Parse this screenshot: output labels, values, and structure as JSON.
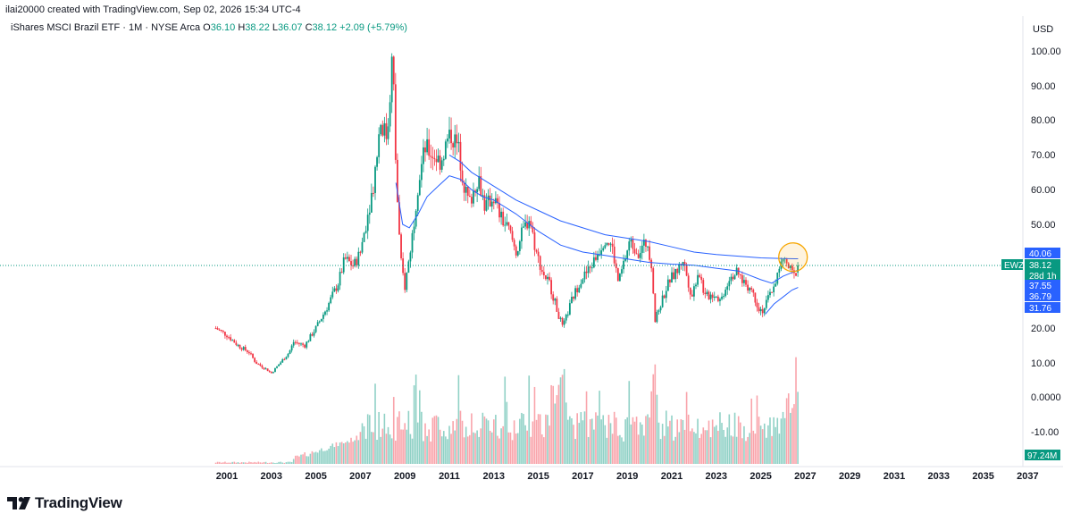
{
  "header": {
    "credit": "ilai20000 created with TradingView.com, Sep 02, 2026 15:34 UTC-4"
  },
  "legend": {
    "symbol": "iShares MSCI Brazil ETF · 1M · NYSE Arca",
    "o_label": "O",
    "o_value": "36.10",
    "h_label": "H",
    "h_value": "38.22",
    "l_label": "L",
    "l_value": "36.07",
    "c_label": "C",
    "c_value": "38.12",
    "change": "+2.09 (+5.79%)"
  },
  "currency": "USD",
  "brand": {
    "name": "TradingView"
  },
  "colors": {
    "up": "#089981",
    "down": "#f23645",
    "ma": "#2962ff",
    "price_line": "#089981",
    "highlight": "#f7a600"
  },
  "chart_data": {
    "type": "candlestick",
    "title": "",
    "symbol_tag": "EWZ",
    "y_ticks": [
      "100.00",
      "90.00",
      "80.00",
      "70.00",
      "60.00",
      "50.00",
      "20.00",
      "10.00",
      "0.0000",
      "-10.00"
    ],
    "x_ticks": [
      "2001",
      "2003",
      "2005",
      "2007",
      "2009",
      "2011",
      "2013",
      "2015",
      "2017",
      "2019",
      "2021",
      "2023",
      "2025",
      "2027",
      "2029",
      "2031",
      "2033",
      "2035",
      "2037"
    ],
    "price_labels": [
      {
        "value": "40.06",
        "color": "#2962ff"
      },
      {
        "value": "38.12",
        "color": "#089981"
      },
      {
        "value": "28d 1h",
        "color": "#089981"
      },
      {
        "value": "37.55",
        "color": "#2962ff"
      },
      {
        "value": "36.79",
        "color": "#2962ff"
      },
      {
        "value": "31.76",
        "color": "#2962ff"
      }
    ],
    "volume_label": "97.24M",
    "close_path": [
      [
        2000.5,
        20
      ],
      [
        2001.0,
        18
      ],
      [
        2001.5,
        15
      ],
      [
        2002.0,
        13
      ],
      [
        2002.3,
        10
      ],
      [
        2002.8,
        8
      ],
      [
        2003.0,
        7
      ],
      [
        2003.4,
        10
      ],
      [
        2003.8,
        13
      ],
      [
        2004.0,
        16
      ],
      [
        2004.5,
        15
      ],
      [
        2005.0,
        20
      ],
      [
        2005.5,
        26
      ],
      [
        2006.0,
        33
      ],
      [
        2006.3,
        40
      ],
      [
        2006.7,
        38
      ],
      [
        2007.0,
        42
      ],
      [
        2007.3,
        52
      ],
      [
        2007.6,
        62
      ],
      [
        2007.9,
        80
      ],
      [
        2008.2,
        75
      ],
      [
        2008.45,
        100
      ],
      [
        2008.6,
        65
      ],
      [
        2008.8,
        40
      ],
      [
        2009.0,
        32
      ],
      [
        2009.3,
        45
      ],
      [
        2009.6,
        62
      ],
      [
        2009.9,
        72
      ],
      [
        2010.3,
        70
      ],
      [
        2010.6,
        68
      ],
      [
        2010.9,
        74
      ],
      [
        2011.1,
        76
      ],
      [
        2011.4,
        72
      ],
      [
        2011.7,
        60
      ],
      [
        2011.9,
        56
      ],
      [
        2012.3,
        64
      ],
      [
        2012.6,
        55
      ],
      [
        2013.0,
        58
      ],
      [
        2013.3,
        52
      ],
      [
        2013.7,
        48
      ],
      [
        2014.0,
        42
      ],
      [
        2014.3,
        48
      ],
      [
        2014.6,
        52
      ],
      [
        2014.9,
        42
      ],
      [
        2015.2,
        36
      ],
      [
        2015.5,
        33
      ],
      [
        2015.9,
        24
      ],
      [
        2016.1,
        20
      ],
      [
        2016.5,
        28
      ],
      [
        2016.9,
        34
      ],
      [
        2017.3,
        37
      ],
      [
        2017.7,
        42
      ],
      [
        2018.0,
        46
      ],
      [
        2018.3,
        44
      ],
      [
        2018.6,
        33
      ],
      [
        2018.9,
        40
      ],
      [
        2019.1,
        45
      ],
      [
        2019.5,
        42
      ],
      [
        2019.9,
        45
      ],
      [
        2020.1,
        38
      ],
      [
        2020.25,
        22
      ],
      [
        2020.5,
        27
      ],
      [
        2020.9,
        34
      ],
      [
        2021.2,
        36
      ],
      [
        2021.5,
        40
      ],
      [
        2021.9,
        29
      ],
      [
        2022.2,
        37
      ],
      [
        2022.5,
        29
      ],
      [
        2022.9,
        30
      ],
      [
        2023.2,
        28
      ],
      [
        2023.6,
        35
      ],
      [
        2023.9,
        36
      ],
      [
        2024.3,
        33
      ],
      [
        2024.6,
        31
      ],
      [
        2024.9,
        26
      ],
      [
        2025.1,
        25
      ],
      [
        2025.5,
        31
      ],
      [
        2025.8,
        36
      ],
      [
        2026.0,
        40
      ],
      [
        2026.3,
        37
      ],
      [
        2026.5,
        35
      ],
      [
        2026.68,
        38.12
      ]
    ],
    "ma_fast": [
      [
        2008.6,
        62
      ],
      [
        2008.9,
        50
      ],
      [
        2009.2,
        49
      ],
      [
        2009.6,
        53
      ],
      [
        2010.0,
        58
      ],
      [
        2010.5,
        61
      ],
      [
        2011.0,
        64
      ],
      [
        2011.5,
        63
      ],
      [
        2012.0,
        60
      ],
      [
        2012.5,
        58
      ],
      [
        2013.0,
        57
      ],
      [
        2014.0,
        53
      ],
      [
        2015.0,
        48
      ],
      [
        2016.0,
        44
      ],
      [
        2017.0,
        42
      ],
      [
        2018.0,
        41
      ],
      [
        2019.0,
        40
      ],
      [
        2020.0,
        39
      ],
      [
        2021.0,
        38.5
      ],
      [
        2022.0,
        38.2
      ],
      [
        2023.0,
        37.3
      ],
      [
        2024.0,
        36.5
      ],
      [
        2025.0,
        34
      ],
      [
        2025.5,
        33
      ],
      [
        2026.0,
        35
      ],
      [
        2026.68,
        36.79
      ]
    ],
    "ma_slow": [
      [
        2011.0,
        70
      ],
      [
        2011.5,
        68
      ],
      [
        2012.0,
        65
      ],
      [
        2013.0,
        61
      ],
      [
        2014.0,
        57
      ],
      [
        2015.0,
        54
      ],
      [
        2016.0,
        51
      ],
      [
        2017.0,
        49
      ],
      [
        2018.0,
        47
      ],
      [
        2019.0,
        46
      ],
      [
        2020.0,
        45
      ],
      [
        2021.0,
        43.5
      ],
      [
        2022.0,
        42
      ],
      [
        2023.0,
        41.3
      ],
      [
        2024.0,
        40.8
      ],
      [
        2025.0,
        40.3
      ],
      [
        2026.0,
        40.1
      ],
      [
        2026.68,
        40.06
      ]
    ],
    "ma_third": [
      [
        2025.2,
        24
      ],
      [
        2025.6,
        27
      ],
      [
        2026.0,
        29
      ],
      [
        2026.4,
        31
      ],
      [
        2026.68,
        31.76
      ]
    ]
  }
}
